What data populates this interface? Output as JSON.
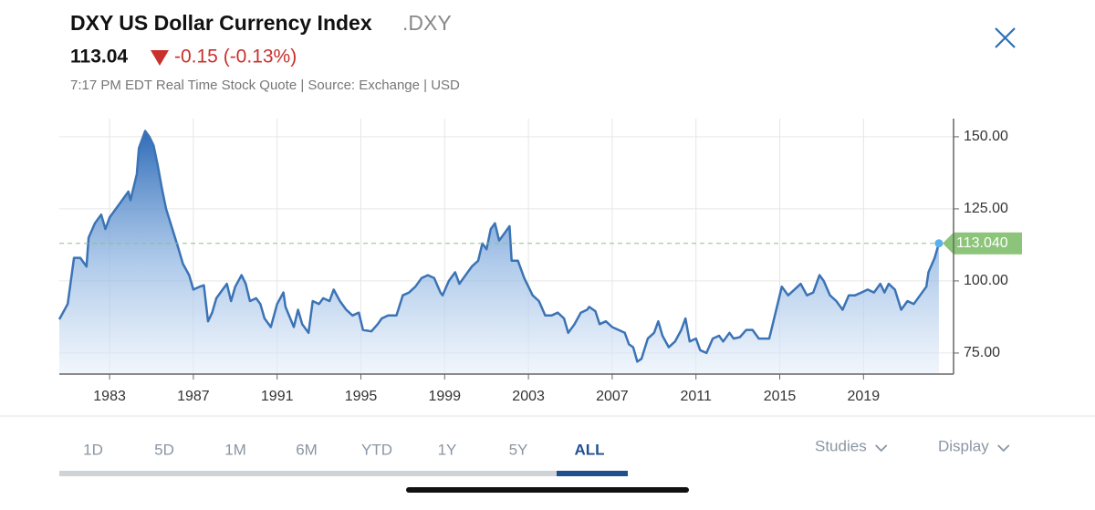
{
  "header": {
    "title": "DXY US Dollar Currency Index",
    "symbol": ".DXY",
    "price": "113.04",
    "change": "-0.15 (-0.13%)",
    "info": "7:17 PM EDT Real Time Stock Quote | Source: Exchange | USD"
  },
  "chart_data": {
    "type": "line",
    "color": "#3b73b5",
    "x": [
      1980.6,
      1981.0,
      1981.3,
      1981.6,
      1981.9,
      1982.0,
      1982.3,
      1982.6,
      1982.8,
      1983.0,
      1983.3,
      1983.6,
      1983.9,
      1984.0,
      1984.3,
      1984.4,
      1984.7,
      1984.9,
      1985.1,
      1985.3,
      1985.5,
      1985.7,
      1986.0,
      1986.3,
      1986.5,
      1986.8,
      1987.0,
      1987.3,
      1987.5,
      1987.7,
      1987.9,
      1988.1,
      1988.4,
      1988.6,
      1988.8,
      1989.0,
      1989.3,
      1989.5,
      1989.7,
      1990.0,
      1990.2,
      1990.4,
      1990.7,
      1991.0,
      1991.3,
      1991.4,
      1991.8,
      1992.0,
      1992.2,
      1992.5,
      1992.7,
      1993.0,
      1993.2,
      1993.5,
      1993.7,
      1994.0,
      1994.3,
      1994.6,
      1994.9,
      1995.1,
      1995.5,
      1995.8,
      1996.0,
      1996.3,
      1996.7,
      1997.0,
      1997.3,
      1997.6,
      1997.9,
      1998.2,
      1998.5,
      1998.8,
      1998.9,
      1999.2,
      1999.5,
      1999.7,
      2000.0,
      2000.3,
      2000.6,
      2000.8,
      2001.0,
      2001.2,
      2001.4,
      2001.6,
      2001.9,
      2002.1,
      2002.2,
      2002.5,
      2002.8,
      2003.0,
      2003.2,
      2003.5,
      2003.8,
      2004.1,
      2004.4,
      2004.7,
      2004.9,
      2005.2,
      2005.5,
      2005.8,
      2005.9,
      2006.2,
      2006.4,
      2006.7,
      2007.0,
      2007.3,
      2007.6,
      2007.8,
      2008.0,
      2008.2,
      2008.4,
      2008.7,
      2009.0,
      2009.2,
      2009.4,
      2009.7,
      2010.0,
      2010.3,
      2010.5,
      2010.7,
      2011.0,
      2011.2,
      2011.5,
      2011.8,
      2012.1,
      2012.3,
      2012.6,
      2012.8,
      2013.1,
      2013.4,
      2013.7,
      2014.0,
      2014.5,
      2014.8,
      2015.1,
      2015.4,
      2015.7,
      2016.0,
      2016.3,
      2016.6,
      2016.9,
      2017.1,
      2017.4,
      2017.7,
      2018.0,
      2018.3,
      2018.6,
      2018.9,
      2019.2,
      2019.5,
      2019.8,
      2020.0,
      2020.2,
      2020.5,
      2020.8,
      2021.1,
      2021.4,
      2021.7,
      2022.0,
      2022.1,
      2022.4,
      2022.6
    ],
    "values": [
      86.7,
      92,
      108,
      108,
      105,
      115,
      120,
      123,
      118,
      122,
      125,
      128,
      131,
      128,
      137,
      146,
      152,
      150,
      147,
      140,
      132,
      125,
      118,
      111,
      106,
      102,
      97,
      98,
      98.5,
      86,
      89,
      94,
      97,
      99,
      93,
      98,
      102,
      99,
      93,
      94,
      92,
      87,
      84,
      92,
      96,
      91,
      84,
      90,
      85,
      82,
      93,
      92,
      94,
      93,
      97,
      93,
      90,
      88,
      89,
      83,
      82.5,
      85,
      87,
      88,
      88,
      95,
      96,
      98,
      101,
      102,
      101,
      96,
      95,
      100,
      103,
      99,
      102,
      105,
      107,
      113,
      111,
      118,
      120,
      114,
      117,
      119,
      107,
      107,
      101,
      98,
      95,
      93,
      88,
      88,
      89,
      87,
      82,
      85,
      89,
      90,
      91,
      89.5,
      85,
      86,
      84,
      83,
      82,
      78,
      77,
      72,
      73,
      80,
      82,
      86,
      81,
      77,
      79,
      83,
      87,
      79,
      80,
      76,
      75,
      80,
      81,
      79,
      82,
      80,
      80.5,
      83,
      83,
      80,
      80,
      89,
      98,
      95,
      97,
      99,
      95,
      96,
      102,
      100,
      95,
      93,
      90,
      95,
      95,
      96,
      97,
      96,
      99,
      96,
      99,
      97,
      90,
      93,
      92,
      95,
      98,
      103,
      108,
      113.04
    ],
    "xlim": [
      1980.6,
      2023.3
    ],
    "ylim": [
      67.7,
      156.3
    ],
    "xticks": [
      1983,
      1987,
      1991,
      1995,
      1999,
      2003,
      2007,
      2011,
      2015,
      2019
    ],
    "yticks": [
      {
        "value": 75,
        "label": "75.00"
      },
      {
        "value": 100,
        "label": "100.00"
      },
      {
        "value": 125,
        "label": "125.00"
      },
      {
        "value": 150,
        "label": "150.00"
      }
    ],
    "grid": true,
    "reference": {
      "value": 113.04,
      "label": "113.040"
    }
  },
  "tabs": [
    "1D",
    "5D",
    "1M",
    "6M",
    "YTD",
    "1Y",
    "5Y",
    "ALL"
  ],
  "active_tab": 7,
  "menus": [
    "Studies",
    "Display"
  ]
}
